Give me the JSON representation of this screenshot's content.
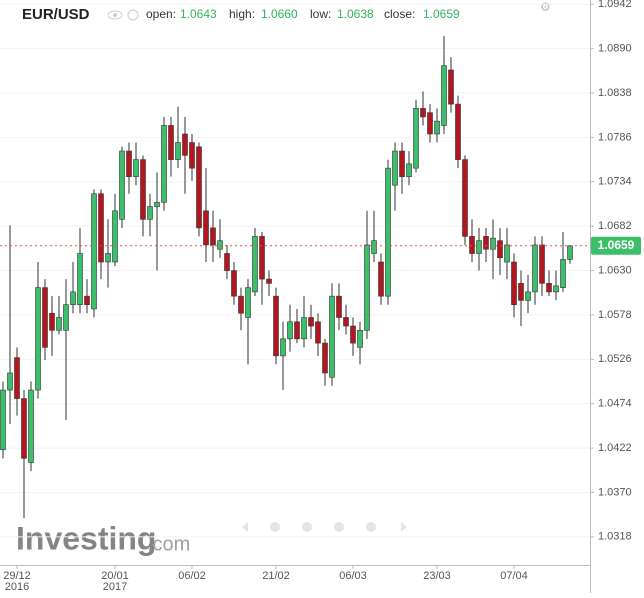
{
  "header": {
    "symbol": "EUR/USD",
    "open_label": "open:",
    "open": "1.0643",
    "high_label": "high:",
    "high": "1.0660",
    "low_label": "low:",
    "low": "1.0638",
    "close_label": "close:",
    "close": "1.0659"
  },
  "brand": {
    "name": "Investing",
    "suffix": ".com"
  },
  "chart_data": {
    "type": "candlestick",
    "categories": [
      null,
      null,
      "29/12",
      null,
      null,
      null,
      null,
      null,
      null,
      null,
      null,
      null,
      null,
      null,
      null,
      null,
      "20/01",
      null,
      null,
      null,
      null,
      null,
      null,
      null,
      null,
      null,
      null,
      "06/02",
      null,
      null,
      null,
      null,
      null,
      null,
      null,
      null,
      null,
      null,
      null,
      "21/02",
      null,
      null,
      null,
      null,
      null,
      null,
      null,
      null,
      null,
      null,
      "06/03",
      null,
      null,
      null,
      null,
      null,
      null,
      null,
      null,
      null,
      null,
      null,
      "23/03",
      null,
      null,
      null,
      null,
      null,
      null,
      null,
      null,
      null,
      null,
      "07/04",
      null,
      null,
      null,
      null,
      null,
      null,
      null,
      null
    ],
    "category_years": [
      null,
      null,
      "2016",
      null,
      null,
      null,
      null,
      null,
      null,
      null,
      null,
      null,
      null,
      null,
      null,
      null,
      "2017",
      null,
      null,
      null,
      null,
      null,
      null,
      null,
      null,
      null,
      null,
      null,
      null,
      null,
      null,
      null,
      null,
      null,
      null,
      null,
      null,
      null,
      null,
      null,
      null,
      null,
      null,
      null,
      null,
      null,
      null,
      null,
      null,
      null,
      null,
      null,
      null,
      null,
      null,
      null,
      null,
      null,
      null,
      null,
      null,
      null,
      null,
      null,
      null,
      null,
      null,
      null,
      null,
      null,
      null,
      null,
      null,
      null,
      null,
      null,
      null,
      null,
      null,
      null,
      null,
      null
    ],
    "series": [
      {
        "up_color": "#3cbf6a",
        "down_color": "#b3161c",
        "open": [
          1.042,
          1.049,
          1.0528,
          1.048,
          1.0405,
          1.049,
          1.061,
          1.058,
          1.056,
          1.056,
          1.059,
          1.059,
          1.06,
          1.0585,
          1.072,
          1.064,
          1.064,
          1.069,
          1.077,
          1.074,
          1.076,
          1.069,
          1.0705,
          1.071,
          1.08,
          1.076,
          1.079,
          1.078,
          1.0775,
          1.07,
          1.068,
          1.0655,
          1.065,
          1.063,
          1.06,
          1.0575,
          1.0605,
          1.067,
          1.062,
          1.06,
          1.053,
          1.055,
          1.057,
          1.055,
          1.0575,
          1.057,
          1.0545,
          1.0505,
          1.06,
          1.0575,
          1.0565,
          1.054,
          1.056,
          1.065,
          1.064,
          1.06,
          1.073,
          1.077,
          1.074,
          1.075,
          1.082,
          1.0815,
          1.079,
          1.08,
          1.0865,
          1.0825,
          1.076,
          1.067,
          1.065,
          1.067,
          1.0655,
          1.0665,
          1.064,
          1.064,
          1.0615,
          1.0595,
          1.0605,
          1.066,
          1.0615,
          1.0605,
          1.061,
          1.0643
        ],
        "high": [
          1.05,
          1.0683,
          1.054,
          1.049,
          1.05,
          1.064,
          1.062,
          1.06,
          1.06,
          1.062,
          1.064,
          1.068,
          1.062,
          1.0725,
          1.0725,
          1.069,
          1.072,
          1.0775,
          1.078,
          1.078,
          1.0765,
          1.072,
          1.0745,
          1.081,
          1.081,
          1.0822,
          1.081,
          1.079,
          1.078,
          1.075,
          1.07,
          1.069,
          1.066,
          1.064,
          1.061,
          1.062,
          1.068,
          1.0675,
          1.063,
          1.061,
          1.057,
          1.059,
          1.0585,
          1.06,
          1.059,
          1.058,
          1.055,
          1.0615,
          1.0615,
          1.059,
          1.0575,
          1.057,
          1.07,
          1.07,
          1.065,
          1.076,
          1.078,
          1.078,
          1.077,
          1.083,
          1.084,
          1.0825,
          1.082,
          1.0905,
          1.088,
          1.0835,
          1.0765,
          1.069,
          1.068,
          1.068,
          1.069,
          1.068,
          1.068,
          1.065,
          1.063,
          1.0625,
          1.067,
          1.067,
          1.063,
          1.063,
          1.0675,
          1.066
        ],
        "low": [
          1.041,
          1.045,
          1.046,
          1.034,
          1.0395,
          1.048,
          1.0525,
          1.053,
          1.0555,
          1.0455,
          1.058,
          1.058,
          1.058,
          1.0575,
          1.062,
          1.061,
          1.0635,
          1.068,
          1.072,
          1.073,
          1.067,
          1.067,
          1.063,
          1.07,
          1.074,
          1.075,
          1.072,
          1.0735,
          1.067,
          1.064,
          1.064,
          1.0645,
          1.062,
          1.059,
          1.056,
          1.052,
          1.06,
          1.059,
          1.06,
          1.052,
          1.049,
          1.0535,
          1.0545,
          1.054,
          1.055,
          1.053,
          1.0495,
          1.0495,
          1.056,
          1.0555,
          1.053,
          1.052,
          1.055,
          1.064,
          1.059,
          1.059,
          1.07,
          1.072,
          1.073,
          1.0745,
          1.08,
          1.078,
          1.078,
          1.079,
          1.0815,
          1.075,
          1.066,
          1.064,
          1.063,
          1.064,
          1.062,
          1.0625,
          1.062,
          1.0575,
          1.0565,
          1.058,
          1.059,
          1.06,
          1.06,
          1.0595,
          1.0605,
          1.0638
        ],
        "close": [
          1.049,
          1.051,
          1.048,
          1.041,
          1.049,
          1.061,
          1.054,
          1.056,
          1.0575,
          1.059,
          1.0605,
          1.065,
          1.059,
          1.072,
          1.064,
          1.065,
          1.07,
          1.077,
          1.074,
          1.076,
          1.069,
          1.0705,
          1.071,
          1.08,
          1.076,
          1.078,
          1.0765,
          1.075,
          1.068,
          1.066,
          1.066,
          1.0665,
          1.063,
          1.06,
          1.058,
          1.061,
          1.067,
          1.062,
          1.0615,
          1.053,
          1.055,
          1.057,
          1.055,
          1.0575,
          1.0565,
          1.0545,
          1.051,
          1.06,
          1.0575,
          1.0565,
          1.0545,
          1.056,
          1.066,
          1.0665,
          1.06,
          1.075,
          1.077,
          1.074,
          1.0755,
          1.082,
          1.081,
          1.079,
          1.0805,
          1.087,
          1.0825,
          1.076,
          1.067,
          1.065,
          1.0665,
          1.0655,
          1.0668,
          1.0645,
          1.066,
          1.059,
          1.0595,
          1.0605,
          1.066,
          1.0615,
          1.0605,
          1.0612,
          1.0643,
          1.0659
        ]
      }
    ],
    "last_price": 1.0659,
    "last_price_color": "#3cbf6a",
    "last_line_color": "#e05050",
    "ylim": [
      1.0285,
      1.0947
    ],
    "yticks": [
      1.0318,
      {
        "value": 1.037,
        "label": "1.0370"
      },
      1.0422,
      1.0474,
      1.0526,
      1.0578,
      {
        "value": 1.063,
        "label": "1.0630"
      },
      1.0682,
      1.0734,
      1.0786,
      1.0838,
      {
        "value": 1.089,
        "label": "1.0890"
      },
      1.0942
    ]
  }
}
